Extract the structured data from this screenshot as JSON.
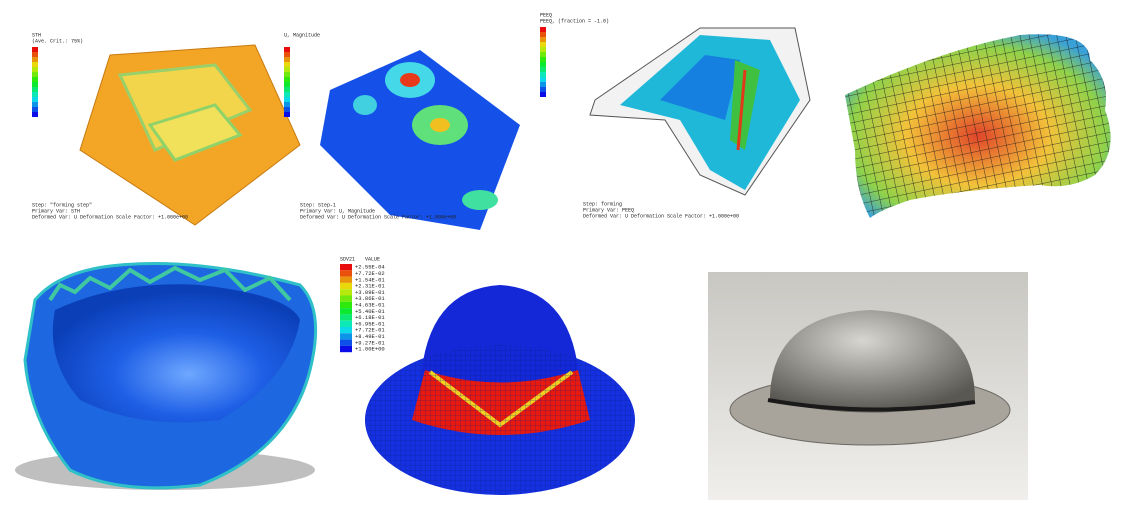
{
  "panels": [
    {
      "legend_title": "STH",
      "legend_subtitle": "(Ave. Crit.: 75%)",
      "steps": [
        "Step: \"forming step\"",
        "Primary Var: STH",
        "Deformed Var: U   Deformation Scale Factor: +1.000e+00"
      ]
    },
    {
      "legend_title": "U, Magnitude",
      "steps": [
        "Step: Step-1",
        "Primary Var: U, Magnitude",
        "Deformed Var: U   Deformation Scale Factor: +1.000e+00"
      ]
    },
    {
      "legend_title": "PEEQ",
      "legend_subtitle": "PEEQ, (fraction = -1.0)",
      "steps": [
        "Step: forming",
        "Primary Var: PEEQ",
        "Deformed Var: U   Deformation Scale Factor: +1.000e+00"
      ]
    }
  ],
  "sdv_legend": {
    "title": "SDV21",
    "column": "VALUE",
    "labels": [
      "+2.55E-04",
      "+7.72E-02",
      "+1.54E-01",
      "+2.31E-01",
      "+3.09E-01",
      "+3.86E-01",
      "+4.63E-01",
      "+5.40E-01",
      "+6.18E-01",
      "+6.95E-01",
      "+7.72E-01",
      "+8.49E-01",
      "+9.27E-01",
      "+1.00E+00"
    ]
  }
}
